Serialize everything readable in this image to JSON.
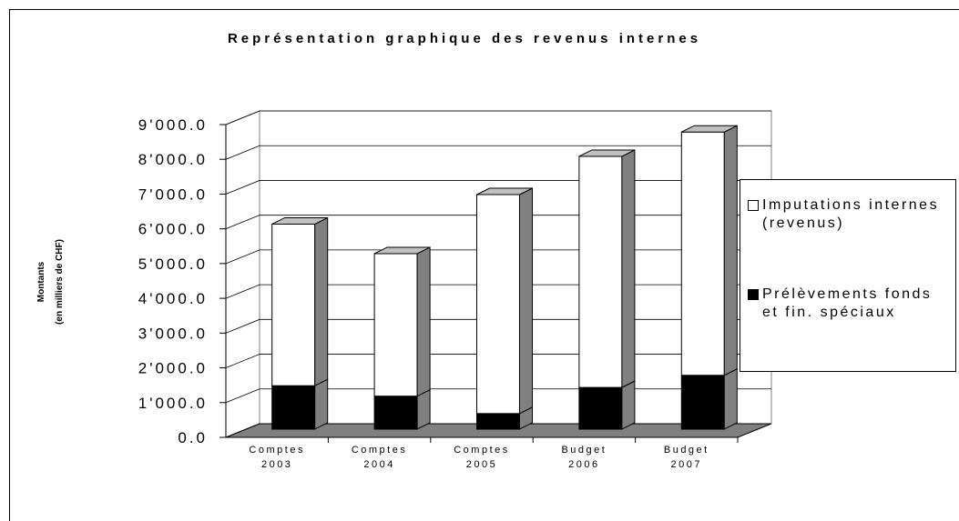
{
  "chart_data": {
    "type": "bar3d_stacked",
    "title": "Représentation graphique des revenus internes",
    "ylabel": [
      "Montants",
      "(en milliers de CHF)"
    ],
    "categories": [
      [
        "Comptes",
        "2003"
      ],
      [
        "Comptes",
        "2004"
      ],
      [
        "Comptes",
        "2005"
      ],
      [
        "Budget",
        "2006"
      ],
      [
        "Budget",
        "2007"
      ]
    ],
    "series": [
      {
        "name": "Prélèvements fonds et fin. spéciaux",
        "color": "#000000",
        "values": [
          1250,
          950,
          450,
          1200,
          1550
        ]
      },
      {
        "name": "Imputations internes (revenus)",
        "color": "#ffffff",
        "values": [
          4650,
          4100,
          6300,
          6650,
          7000
        ]
      }
    ],
    "ylim": [
      0,
      9000
    ],
    "yticks": [
      {
        "value": 0,
        "label": "0.0"
      },
      {
        "value": 1000,
        "label": "1'000.0"
      },
      {
        "value": 2000,
        "label": "2'000.0"
      },
      {
        "value": 3000,
        "label": "3'000.0"
      },
      {
        "value": 4000,
        "label": "4'000.0"
      },
      {
        "value": 5000,
        "label": "5'000.0"
      },
      {
        "value": 6000,
        "label": "6'000.0"
      },
      {
        "value": 7000,
        "label": "7'000.0"
      },
      {
        "value": 8000,
        "label": "8'000.0"
      },
      {
        "value": 9000,
        "label": "9'000.0"
      }
    ],
    "grid": true
  }
}
